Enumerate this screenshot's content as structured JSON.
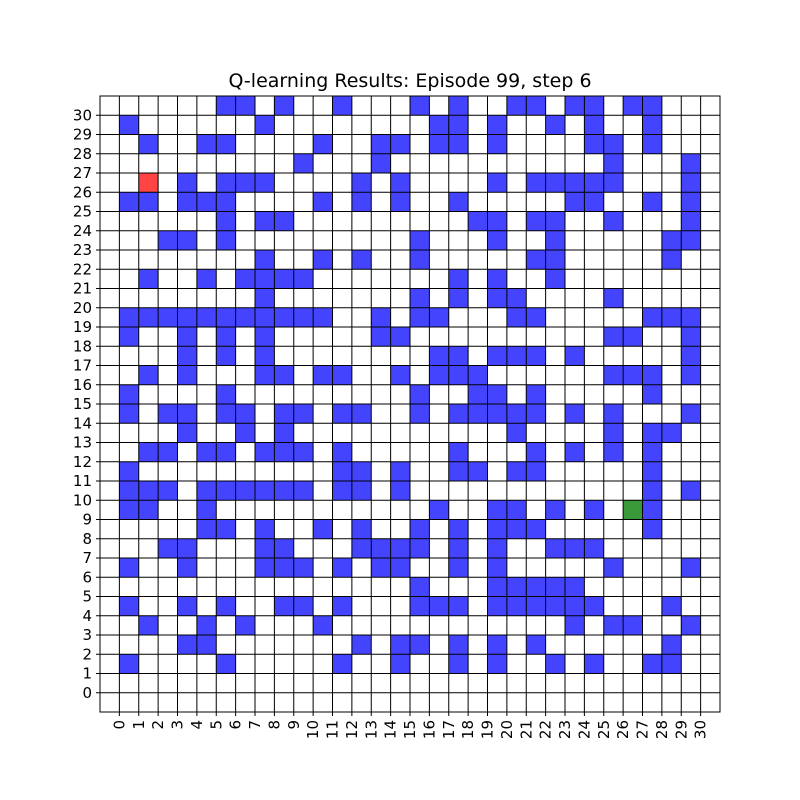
{
  "chart_data": {
    "type": "heatmap",
    "title": "Q-learning Results: Episode 99, step 6",
    "xlabel": "",
    "ylabel": "",
    "xticks": [
      0,
      1,
      2,
      3,
      4,
      5,
      6,
      7,
      8,
      9,
      10,
      11,
      12,
      13,
      14,
      15,
      16,
      17,
      18,
      19,
      20,
      21,
      22,
      23,
      24,
      25,
      26,
      27,
      28,
      29,
      30
    ],
    "yticks": [
      0,
      1,
      2,
      3,
      4,
      5,
      6,
      7,
      8,
      9,
      10,
      11,
      12,
      13,
      14,
      15,
      16,
      17,
      18,
      19,
      20,
      21,
      22,
      23,
      24,
      25,
      26,
      27,
      28,
      29,
      30
    ],
    "xlim": [
      -1,
      31
    ],
    "ylim": [
      -1,
      31
    ],
    "grid": true,
    "colors": {
      "wall": "#4444ff",
      "agent": "#ff4444",
      "goal": "#3a9a3a",
      "empty": "#ffffff",
      "grid": "#000000"
    },
    "agent": [
      1,
      26
    ],
    "goal": [
      26,
      9
    ],
    "rows": [
      {
        "y": 30,
        "walls": [
          5,
          6,
          8,
          11,
          15,
          17,
          20,
          21,
          23,
          24,
          26,
          27
        ]
      },
      {
        "y": 29,
        "walls": [
          0,
          7,
          16,
          17,
          19,
          22,
          24,
          27
        ]
      },
      {
        "y": 28,
        "walls": [
          1,
          4,
          5,
          10,
          13,
          14,
          16,
          17,
          19,
          24,
          25,
          27
        ]
      },
      {
        "y": 27,
        "walls": [
          9,
          13,
          25,
          29
        ]
      },
      {
        "y": 26,
        "walls": [
          3,
          5,
          6,
          7,
          12,
          14,
          19,
          21,
          22,
          23,
          24,
          25,
          29
        ]
      },
      {
        "y": 25,
        "walls": [
          0,
          1,
          3,
          4,
          5,
          10,
          12,
          14,
          17,
          23,
          24,
          27,
          29
        ]
      },
      {
        "y": 24,
        "walls": [
          5,
          7,
          8,
          18,
          19,
          21,
          22,
          25,
          29
        ]
      },
      {
        "y": 23,
        "walls": [
          2,
          3,
          5,
          15,
          19,
          22,
          28,
          29
        ]
      },
      {
        "y": 22,
        "walls": [
          7,
          10,
          12,
          15,
          21,
          22,
          28
        ]
      },
      {
        "y": 21,
        "walls": [
          1,
          4,
          6,
          7,
          8,
          9,
          17,
          19,
          22
        ]
      },
      {
        "y": 20,
        "walls": [
          7,
          15,
          17,
          19,
          20,
          25
        ]
      },
      {
        "y": 19,
        "walls": [
          0,
          1,
          2,
          3,
          4,
          5,
          6,
          7,
          8,
          9,
          10,
          13,
          15,
          16,
          20,
          21,
          27,
          28,
          29
        ]
      },
      {
        "y": 18,
        "walls": [
          0,
          3,
          5,
          7,
          13,
          14,
          25,
          26,
          29
        ]
      },
      {
        "y": 17,
        "walls": [
          3,
          5,
          7,
          16,
          17,
          19,
          20,
          21,
          23,
          29
        ]
      },
      {
        "y": 16,
        "walls": [
          1,
          3,
          7,
          8,
          10,
          11,
          14,
          16,
          17,
          18,
          25,
          26,
          27,
          29
        ]
      },
      {
        "y": 15,
        "walls": [
          0,
          5,
          15,
          18,
          19,
          21,
          27
        ]
      },
      {
        "y": 14,
        "walls": [
          0,
          2,
          3,
          5,
          6,
          8,
          9,
          11,
          12,
          15,
          17,
          18,
          19,
          20,
          21,
          23,
          25,
          29
        ]
      },
      {
        "y": 13,
        "walls": [
          3,
          6,
          8,
          20,
          25,
          27,
          28
        ]
      },
      {
        "y": 12,
        "walls": [
          1,
          2,
          4,
          5,
          7,
          8,
          9,
          11,
          17,
          21,
          23,
          25,
          27
        ]
      },
      {
        "y": 11,
        "walls": [
          0,
          11,
          12,
          14,
          17,
          18,
          20,
          21,
          27
        ]
      },
      {
        "y": 10,
        "walls": [
          0,
          1,
          2,
          4,
          5,
          6,
          7,
          8,
          9,
          11,
          12,
          14,
          27,
          29
        ]
      },
      {
        "y": 9,
        "walls": [
          0,
          1,
          4,
          16,
          19,
          20,
          22,
          24,
          27
        ]
      },
      {
        "y": 8,
        "walls": [
          4,
          5,
          7,
          10,
          12,
          15,
          17,
          19,
          20,
          21,
          27
        ]
      },
      {
        "y": 7,
        "walls": [
          2,
          3,
          7,
          8,
          12,
          13,
          14,
          15,
          17,
          19,
          22,
          23,
          24
        ]
      },
      {
        "y": 6,
        "walls": [
          0,
          3,
          7,
          8,
          9,
          11,
          13,
          14,
          17,
          19,
          25,
          29
        ]
      },
      {
        "y": 5,
        "walls": [
          15,
          19,
          20,
          21,
          22,
          23
        ]
      },
      {
        "y": 4,
        "walls": [
          0,
          3,
          5,
          8,
          9,
          11,
          15,
          16,
          17,
          19,
          20,
          21,
          22,
          23,
          24,
          28
        ]
      },
      {
        "y": 3,
        "walls": [
          1,
          4,
          6,
          10,
          23,
          25,
          26,
          29
        ]
      },
      {
        "y": 2,
        "walls": [
          3,
          4,
          12,
          14,
          15,
          17,
          19,
          21,
          28
        ]
      },
      {
        "y": 1,
        "walls": [
          0,
          5,
          11,
          14,
          17,
          19,
          22,
          24,
          27,
          28
        ]
      }
    ]
  }
}
